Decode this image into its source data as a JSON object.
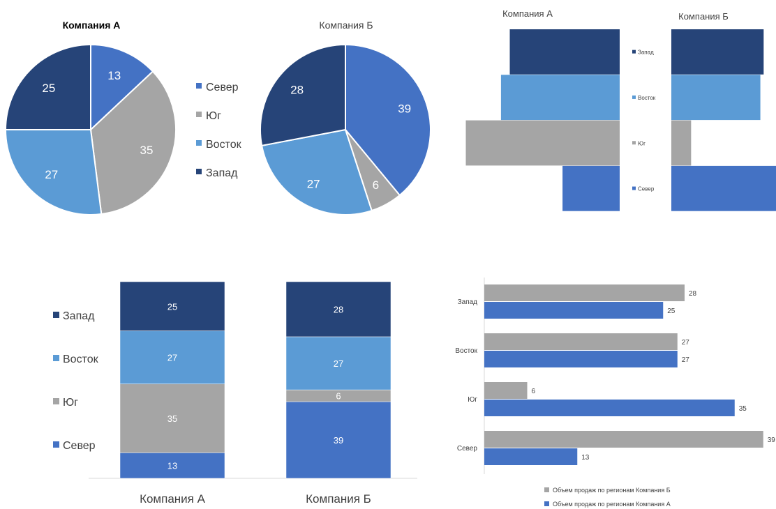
{
  "colors": {
    "north": "#4472C4",
    "south": "#A5A5A5",
    "east": "#5B9BD5",
    "west": "#264478",
    "text": "#404040",
    "axis": "#D9D9D9"
  },
  "chart_data": [
    {
      "type": "pie",
      "title": "Компания А",
      "categories": [
        "Север",
        "Юг",
        "Восток",
        "Запад"
      ],
      "values": [
        13,
        35,
        27,
        25
      ]
    },
    {
      "type": "pie",
      "title": "Компания Б",
      "categories": [
        "Север",
        "Юг",
        "Восток",
        "Запад"
      ],
      "values": [
        39,
        6,
        27,
        28
      ],
      "legend": [
        "Север",
        "Юг",
        "Восток",
        "Запад"
      ],
      "legend_position": "left"
    },
    {
      "type": "bar",
      "orientation": "horizontal",
      "layout": "butterfly",
      "panels": [
        "Компания А",
        "Компания Б"
      ],
      "categories": [
        "Запад",
        "Восток",
        "Юг",
        "Север"
      ],
      "series": [
        {
          "name": "Компания А",
          "values": [
            25,
            27,
            35,
            13
          ]
        },
        {
          "name": "Компания Б",
          "values": [
            28,
            27,
            6,
            39
          ]
        }
      ]
    },
    {
      "type": "bar",
      "stacked": true,
      "categories": [
        "Компания А",
        "Компания Б"
      ],
      "series": [
        {
          "name": "Север",
          "values": [
            13,
            39
          ]
        },
        {
          "name": "Юг",
          "values": [
            35,
            6
          ]
        },
        {
          "name": "Восток",
          "values": [
            27,
            27
          ]
        },
        {
          "name": "Запад",
          "values": [
            25,
            28
          ]
        }
      ],
      "legend": [
        "Запад",
        "Восток",
        "Юг",
        "Север"
      ],
      "legend_position": "left"
    },
    {
      "type": "bar",
      "orientation": "horizontal",
      "categories": [
        "Запад",
        "Восток",
        "Юг",
        "Север"
      ],
      "series": [
        {
          "name": "Объем продаж по регионам Компания Б",
          "values": [
            28,
            27,
            6,
            39
          ]
        },
        {
          "name": "Объем продаж по регионам Компания А",
          "values": [
            25,
            27,
            35,
            13
          ]
        }
      ],
      "legend_position": "bottom"
    }
  ]
}
